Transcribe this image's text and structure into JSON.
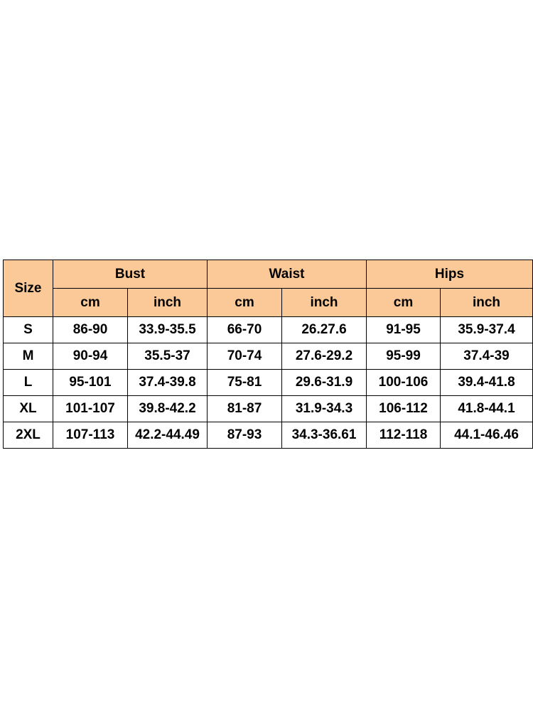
{
  "table": {
    "corner": "Size",
    "groups": [
      "Bust",
      "Waist",
      "Hips"
    ],
    "units": [
      "cm",
      "inch",
      "cm",
      "inch",
      "cm",
      "inch"
    ],
    "rows": [
      [
        "S",
        "86-90",
        "33.9-35.5",
        "66-70",
        "26.27.6",
        "91-95",
        "35.9-37.4"
      ],
      [
        "M",
        "90-94",
        "35.5-37",
        "70-74",
        "27.6-29.2",
        "95-99",
        "37.4-39"
      ],
      [
        "L",
        "95-101",
        "37.4-39.8",
        "75-81",
        "29.6-31.9",
        "100-106",
        "39.4-41.8"
      ],
      [
        "XL",
        "101-107",
        "39.8-42.2",
        "81-87",
        "31.9-34.3",
        "106-112",
        "41.8-44.1"
      ],
      [
        "2XL",
        "107-113",
        "42.2-44.49",
        "87-93",
        "34.3-36.61",
        "112-118",
        "44.1-46.46"
      ]
    ]
  }
}
